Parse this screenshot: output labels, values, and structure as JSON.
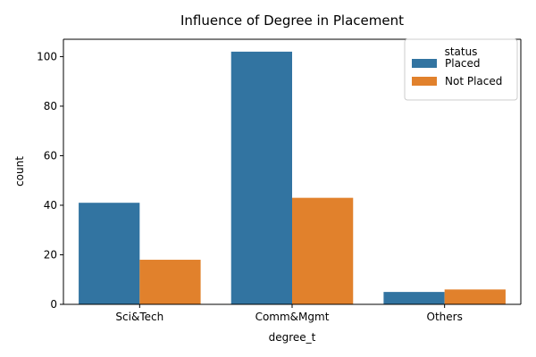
{
  "chart_data": {
    "type": "bar",
    "title": "Influence of Degree in Placement",
    "xlabel": "degree_t",
    "ylabel": "count",
    "categories": [
      "Sci&Tech",
      "Comm&Mgmt",
      "Others"
    ],
    "series": [
      {
        "name": "Placed",
        "values": [
          41,
          102,
          5
        ],
        "color": "#3274a1"
      },
      {
        "name": "Not Placed",
        "values": [
          18,
          43,
          6
        ],
        "color": "#e1812c"
      }
    ],
    "ylim": [
      0,
      107
    ],
    "yticks": [
      0,
      20,
      40,
      60,
      80,
      100
    ],
    "grid": false,
    "legend": {
      "title": "status",
      "position": "top-right"
    }
  }
}
